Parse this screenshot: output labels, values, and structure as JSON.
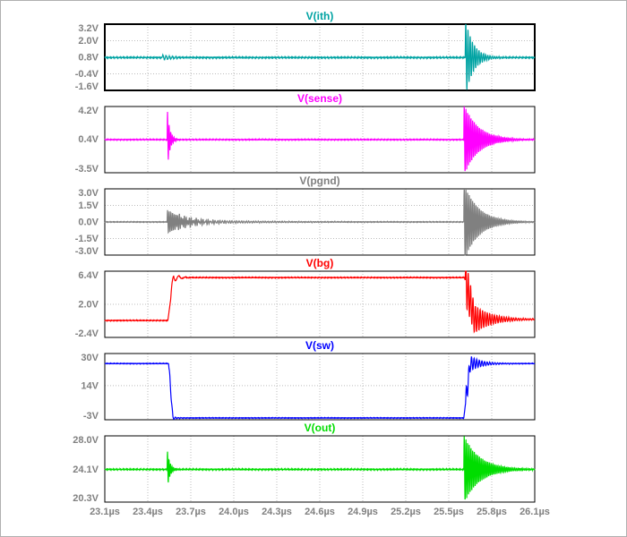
{
  "window": {
    "background": "#ffffff",
    "tick_label_color": "#808080",
    "grid_color": "#bcbcbc"
  },
  "chart_data": {
    "type": "line",
    "layout": "stacked-panels",
    "grid": true,
    "x_axis": {
      "min": 23.1,
      "max": 26.1,
      "unit": "µs",
      "ticks": [
        23.1,
        23.4,
        23.7,
        24.0,
        24.3,
        24.6,
        24.9,
        25.2,
        25.5,
        25.8,
        26.1
      ],
      "labels": [
        "23.1µs",
        "23.4µs",
        "23.7µs",
        "24.0µs",
        "24.3µs",
        "24.6µs",
        "24.9µs",
        "25.2µs",
        "25.5µs",
        "25.8µs",
        "26.1µs"
      ]
    },
    "panels": [
      {
        "title": "V(ith)",
        "color": "#00a3a3",
        "frame": 2,
        "ylim": [
          -1.6,
          3.2
        ],
        "yticks": [
          {
            "v": 3.2,
            "label": "3.2V"
          },
          {
            "v": 2.0,
            "label": "2.0V"
          },
          {
            "v": 0.8,
            "label": "0.8V"
          },
          {
            "v": -0.4,
            "label": "-0.4V"
          },
          {
            "v": -1.6,
            "label": "-1.6V"
          }
        ],
        "baseline": [
          [
            23.1,
            0.78
          ],
          [
            26.1,
            0.78
          ]
        ],
        "noise": 0.04,
        "bursts": [
          {
            "t0": 23.5,
            "amp": 0.2,
            "freq": 45,
            "tau": 0.07
          },
          {
            "t0": 25.615,
            "amp": 2.9,
            "freq": 65,
            "tau": 0.055
          }
        ]
      },
      {
        "title": "V(sense)",
        "color": "#ff00ff",
        "frame": 1,
        "ylim": [
          -3.5,
          4.2
        ],
        "yticks": [
          {
            "v": 4.2,
            "label": "4.2V"
          },
          {
            "v": 0.4,
            "label": "0.4V"
          },
          {
            "v": -3.5,
            "label": "-3.5V"
          }
        ],
        "baseline": [
          [
            23.1,
            0.35
          ],
          [
            26.1,
            0.35
          ]
        ],
        "noise": 0.05,
        "bursts": [
          {
            "t0": 23.535,
            "amp": 3.7,
            "freq": 90,
            "tau": 0.018
          },
          {
            "t0": 25.605,
            "amp": 4.2,
            "freq": 85,
            "tau": 0.1
          }
        ]
      },
      {
        "title": "V(pgnd)",
        "color": "#808080",
        "frame": 1,
        "ylim": [
          -3.0,
          3.0
        ],
        "yticks": [
          {
            "v": 3.0,
            "label": "3.0V"
          },
          {
            "v": 1.5,
            "label": "1.5V"
          },
          {
            "v": 0.0,
            "label": "0.0V"
          },
          {
            "v": -1.5,
            "label": "-1.5V"
          },
          {
            "v": -3.0,
            "label": "-3.0V"
          }
        ],
        "baseline": [
          [
            23.1,
            0.0
          ],
          [
            26.1,
            0.0
          ]
        ],
        "noise": 0.03,
        "bursts": [
          {
            "t0": 23.535,
            "amp": 1.1,
            "freq": 85,
            "tau": 0.12
          },
          {
            "t0": 23.6,
            "amp": 0.22,
            "freq": 60,
            "tau": 0.45
          },
          {
            "t0": 25.605,
            "amp": 3.6,
            "freq": 85,
            "tau": 0.1
          }
        ]
      },
      {
        "title": "V(bg)",
        "color": "#ff0000",
        "frame": 1,
        "ylim": [
          -2.4,
          6.4
        ],
        "yticks": [
          {
            "v": 6.4,
            "label": "6.4V"
          },
          {
            "v": 2.0,
            "label": "2.0V"
          },
          {
            "v": -2.4,
            "label": "-2.4V"
          }
        ],
        "baseline": [
          [
            23.1,
            -0.15
          ],
          [
            23.54,
            -0.15
          ],
          [
            23.58,
            5.55
          ],
          [
            25.61,
            5.55
          ],
          [
            25.68,
            0.0
          ],
          [
            26.1,
            0.0
          ]
        ],
        "noise": 0.05,
        "bursts": [
          {
            "t0": 23.56,
            "amp": 1.1,
            "freq": 22,
            "tau": 0.035
          },
          {
            "t0": 25.615,
            "amp": 3.2,
            "freq": 60,
            "tau": 0.12
          }
        ]
      },
      {
        "title": "V(sw)",
        "color": "#0000ff",
        "frame": 1,
        "ylim": [
          -3.0,
          30.0
        ],
        "yticks": [
          {
            "v": 30.0,
            "label": "30V"
          },
          {
            "v": 14.0,
            "label": "14V"
          },
          {
            "v": -3.0,
            "label": "-3V"
          }
        ],
        "baseline": [
          [
            23.1,
            25.0
          ],
          [
            23.545,
            25.0
          ],
          [
            23.575,
            -2.1
          ],
          [
            25.605,
            -2.1
          ],
          [
            25.65,
            25.0
          ],
          [
            26.1,
            25.0
          ]
        ],
        "noise": 0.15,
        "bursts": [
          {
            "t0": 23.548,
            "amp": 2.5,
            "freq": 50,
            "tau": 0.025
          },
          {
            "t0": 25.618,
            "amp": 5.5,
            "freq": 55,
            "tau": 0.08
          }
        ]
      },
      {
        "title": "V(out)",
        "color": "#00dd00",
        "frame": 1,
        "ylim": [
          20.3,
          28.0
        ],
        "yticks": [
          {
            "v": 28.0,
            "label": "28.0V"
          },
          {
            "v": 24.1,
            "label": "24.1V"
          },
          {
            "v": 20.3,
            "label": "20.3V"
          }
        ],
        "baseline": [
          [
            23.1,
            24.1
          ],
          [
            26.1,
            24.1
          ]
        ],
        "noise": 0.06,
        "bursts": [
          {
            "t0": 23.535,
            "amp": 2.4,
            "freq": 95,
            "tau": 0.018
          },
          {
            "t0": 25.605,
            "amp": 4.0,
            "freq": 85,
            "tau": 0.11
          }
        ]
      }
    ]
  }
}
